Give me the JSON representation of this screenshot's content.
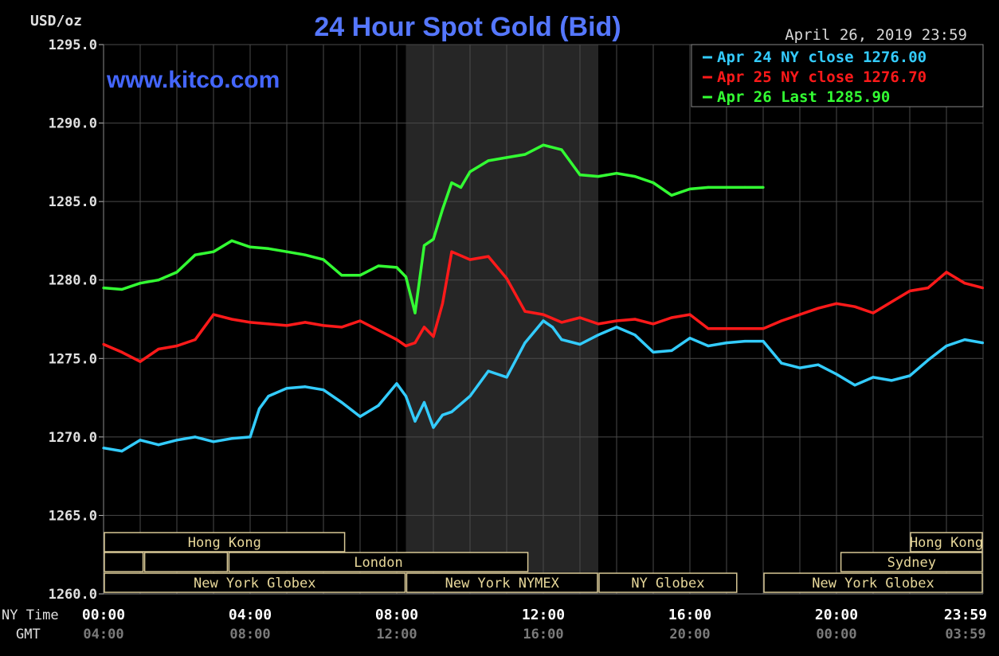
{
  "chart_data": {
    "type": "line",
    "title": "24 Hour Spot Gold (Bid)",
    "watermark": "www.kitco.com",
    "date_label": "April 26, 2019 23:59",
    "ylabel": "USD/oz",
    "ylim": [
      1260,
      1295
    ],
    "yticks": [
      "1295.0",
      "1290.0",
      "1285.0",
      "1280.0",
      "1275.0",
      "1270.0",
      "1265.0",
      "1260.0"
    ],
    "x_axis_label_ny": "NY Time",
    "x_axis_label_gmt": "GMT",
    "xticks_ny": [
      "00:00",
      "04:00",
      "08:00",
      "12:00",
      "16:00",
      "20:00",
      "23:59"
    ],
    "xticks_gmt": [
      "04:00",
      "08:00",
      "12:00",
      "16:00",
      "20:00",
      "00:00",
      "03:59"
    ],
    "grid": true,
    "legend_position": "top-right",
    "legend": [
      {
        "text": "Apr 24 NY close 1276.00",
        "color": "#33ccff"
      },
      {
        "text": "Apr 25 NY close 1276.70",
        "color": "#ff1a1a"
      },
      {
        "text": "Apr 26 Last 1285.90",
        "color": "#33ff33"
      }
    ],
    "shaded_session_hours": [
      8.25,
      13.5
    ],
    "series": [
      {
        "name": "Apr 24",
        "color": "#33ccff",
        "x": [
          0,
          0.5,
          1,
          1.5,
          2,
          2.5,
          3,
          3.5,
          4,
          4.25,
          4.5,
          5,
          5.5,
          6,
          6.5,
          7,
          7.5,
          8,
          8.25,
          8.5,
          8.75,
          9,
          9.25,
          9.5,
          10,
          10.5,
          11,
          11.5,
          12,
          12.25,
          12.5,
          13,
          13.5,
          14,
          14.5,
          15,
          15.5,
          16,
          16.5,
          17,
          17.5,
          18,
          18.5,
          19,
          19.5,
          20,
          20.5,
          21,
          21.5,
          22,
          22.5,
          23,
          23.5,
          23.99
        ],
        "y": [
          1269.3,
          1269.1,
          1269.8,
          1269.5,
          1269.8,
          1270.0,
          1269.7,
          1269.9,
          1270.0,
          1271.8,
          1272.6,
          1273.1,
          1273.2,
          1273.0,
          1272.2,
          1271.3,
          1272.0,
          1273.4,
          1272.6,
          1271.0,
          1272.2,
          1270.6,
          1271.4,
          1271.6,
          1272.6,
          1274.2,
          1273.8,
          1276.0,
          1277.4,
          1277.0,
          1276.2,
          1275.9,
          1276.5,
          1277.0,
          1276.5,
          1275.4,
          1275.5,
          1276.3,
          1275.8,
          1276.0,
          1276.1,
          1276.1,
          1274.7,
          1274.4,
          1274.6,
          1274.0,
          1273.3,
          1273.8,
          1273.6,
          1273.9,
          1274.9,
          1275.8,
          1276.2,
          1276.0
        ]
      },
      {
        "name": "Apr 25",
        "color": "#ff1a1a",
        "x": [
          0,
          0.5,
          1,
          1.5,
          2,
          2.5,
          3,
          3.5,
          4,
          4.5,
          5,
          5.5,
          6,
          6.5,
          7,
          7.5,
          8,
          8.25,
          8.5,
          8.75,
          9,
          9.25,
          9.5,
          10,
          10.5,
          11,
          11.5,
          12,
          12.5,
          13,
          13.5,
          14,
          14.5,
          15,
          15.5,
          16,
          16.5,
          17,
          17.5,
          18,
          18.5,
          19,
          19.5,
          20,
          20.5,
          21,
          21.5,
          22,
          22.5,
          23,
          23.5,
          23.99
        ],
        "y": [
          1275.9,
          1275.4,
          1274.8,
          1275.6,
          1275.8,
          1276.2,
          1277.8,
          1277.5,
          1277.3,
          1277.2,
          1277.1,
          1277.3,
          1277.1,
          1277.0,
          1277.4,
          1276.8,
          1276.2,
          1275.8,
          1276.0,
          1277.0,
          1276.4,
          1278.5,
          1281.8,
          1281.3,
          1281.5,
          1280.1,
          1278.0,
          1277.8,
          1277.3,
          1277.6,
          1277.2,
          1277.4,
          1277.5,
          1277.2,
          1277.6,
          1277.8,
          1276.9,
          1276.9,
          1276.9,
          1276.9,
          1277.4,
          1277.8,
          1278.2,
          1278.5,
          1278.3,
          1277.9,
          1278.6,
          1279.3,
          1279.5,
          1280.5,
          1279.8,
          1279.5
        ]
      },
      {
        "name": "Apr 26",
        "color": "#33ff33",
        "x": [
          0,
          0.5,
          1,
          1.5,
          2,
          2.5,
          3,
          3.5,
          4,
          4.5,
          5,
          5.5,
          6,
          6.5,
          7,
          7.5,
          8,
          8.25,
          8.5,
          8.75,
          9,
          9.25,
          9.5,
          9.75,
          10,
          10.5,
          11,
          11.5,
          12,
          12.5,
          13,
          13.5,
          14,
          14.5,
          15,
          15.5,
          16,
          16.5,
          17,
          17.5,
          18
        ],
        "y": [
          1279.5,
          1279.4,
          1279.8,
          1280.0,
          1280.5,
          1281.6,
          1281.8,
          1282.5,
          1282.1,
          1282.0,
          1281.8,
          1281.6,
          1281.3,
          1280.3,
          1280.3,
          1280.9,
          1280.8,
          1280.2,
          1277.9,
          1282.2,
          1282.6,
          1284.5,
          1286.2,
          1285.9,
          1286.9,
          1287.6,
          1287.8,
          1288.0,
          1288.6,
          1288.3,
          1286.7,
          1286.6,
          1286.8,
          1286.6,
          1286.2,
          1285.4,
          1285.8,
          1285.9,
          1285.9,
          1285.9,
          1285.9
        ]
      }
    ],
    "session_rows": [
      [
        {
          "label": "Hong Kong",
          "start": 0.0,
          "end": 6.6
        }
      ],
      [
        {
          "label": "",
          "start": 0.0,
          "end": 1.1
        },
        {
          "label": "London",
          "start": 1.1,
          "end": 3.4
        },
        {
          "label": "London",
          "start": 3.4,
          "end": 11.6
        },
        {
          "label": "Hong Kong",
          "start": 22.0,
          "end": 24.0
        }
      ],
      [
        {
          "label": "New York Globex",
          "start": 0.0,
          "end": 8.25
        },
        {
          "label": "New York NYMEX",
          "start": 8.25,
          "end": 13.5
        },
        {
          "label": "NY Globex",
          "start": 13.5,
          "end": 17.3
        },
        {
          "label": "Sydney",
          "start": 20.1,
          "end": 24.0
        },
        {
          "label": "New York Globex",
          "start": 18.0,
          "end": 24.0
        }
      ]
    ]
  }
}
